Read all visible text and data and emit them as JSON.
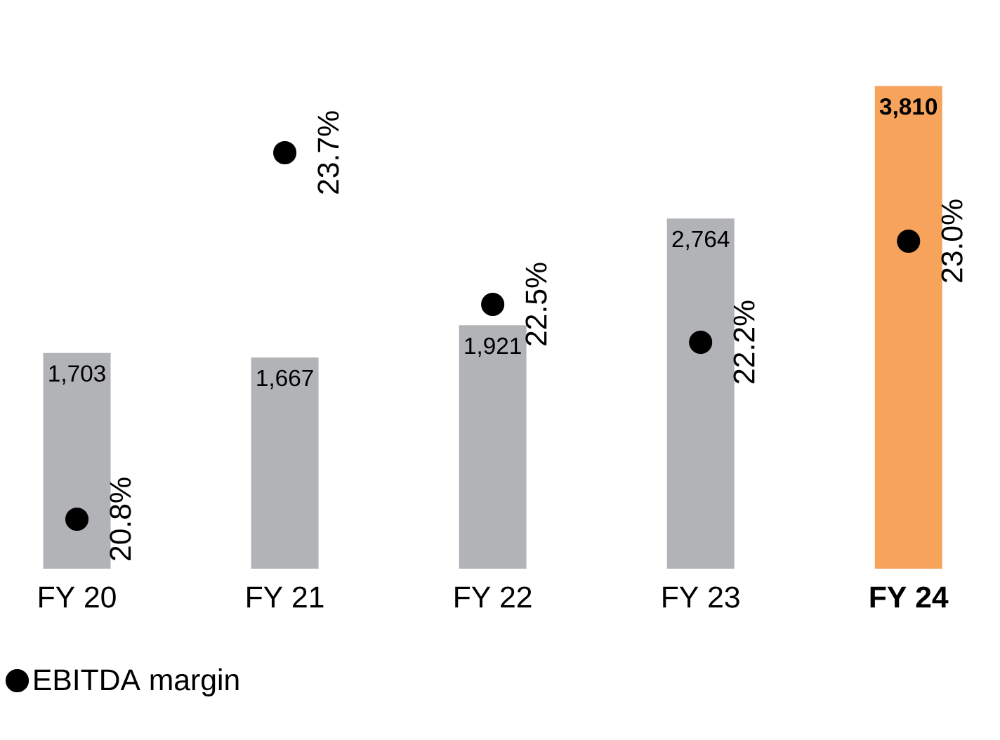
{
  "chart_data": {
    "type": "bar",
    "categories": [
      "FY 20",
      "FY 21",
      "FY 22",
      "FY 23",
      "**FY 24**"
    ],
    "tick_labels": "x",
    "legend": "bottom left",
    "series": [
      {
        "colors": [
          "#b1b3b6",
          "#b1b3b6",
          "#b1b3b6",
          "#b1b3b6",
          "#f7a35c"
        ],
        "values": [
          1703,
          1667,
          1921,
          2764,
          3810
        ],
        "value_labels": [
          "1,703",
          "1,667",
          "1,921",
          "2,764",
          "**3,810**"
        ]
      },
      {
        "type": "scatter",
        "name": "EBITDA margin",
        "axis": "y2",
        "color": "#000000",
        "values": [
          20.8,
          23.7,
          22.5,
          22.2,
          23.0
        ],
        "value_labels": [
          "20.8%",
          "23.7%",
          "22.5%",
          "22.2%",
          "23.0%"
        ]
      }
    ]
  }
}
